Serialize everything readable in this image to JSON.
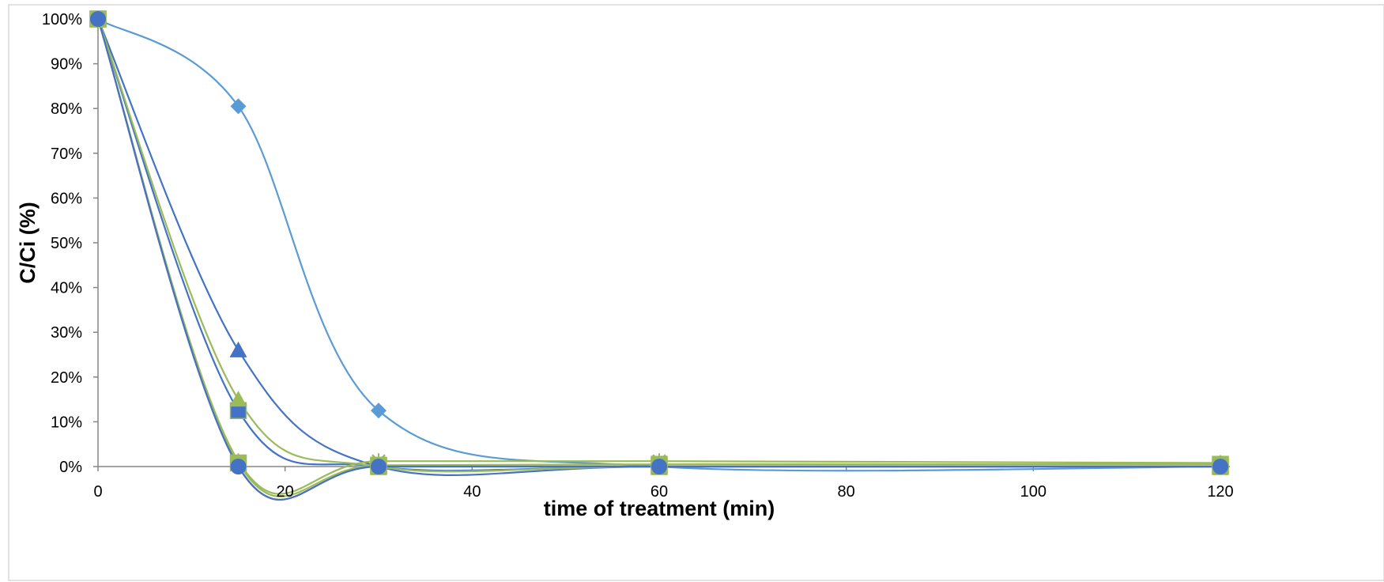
{
  "chart_data": {
    "type": "line",
    "title": "",
    "xlabel": "time of treatment (min)",
    "ylabel": "C/Ci (%)",
    "xlim": [
      0,
      120
    ],
    "ylim": [
      0,
      100
    ],
    "x_ticks": [
      0,
      20,
      40,
      60,
      80,
      100,
      120
    ],
    "y_ticks": [
      0,
      10,
      20,
      30,
      40,
      50,
      60,
      70,
      80,
      90,
      100
    ],
    "y_tick_labels": [
      "0%",
      "10%",
      "20%",
      "30%",
      "40%",
      "50%",
      "60%",
      "70%",
      "80%",
      "90%",
      "100%"
    ],
    "grid": false,
    "legend": "none",
    "smooth": true,
    "x": [
      0,
      15,
      30,
      60,
      120
    ],
    "series": [
      {
        "values": [
          100,
          80.5,
          12.5,
          0,
          0
        ],
        "color": "#5b9bd5",
        "marker": "diamond"
      },
      {
        "values": [
          100,
          26,
          0,
          0,
          0
        ],
        "color": "#4472c4",
        "marker": "triangle"
      },
      {
        "values": [
          100,
          12.5,
          0,
          0,
          0
        ],
        "color": "#4472c4",
        "marker": "square"
      },
      {
        "values": [
          100,
          15,
          0,
          0,
          0
        ],
        "color": "#9bbb59",
        "marker": "triangle"
      },
      {
        "values": [
          100,
          0,
          0,
          0,
          0
        ],
        "color": "#ed7d31",
        "marker": "circle"
      },
      {
        "values": [
          100,
          1.2,
          1.2,
          1.2,
          0.8
        ],
        "color": "#9bbb59",
        "marker": "x"
      },
      {
        "values": [
          100,
          0.8,
          0.3,
          0.5,
          0.5
        ],
        "color": "#9bbb59",
        "marker": "square"
      },
      {
        "values": [
          100,
          0,
          0,
          0,
          0
        ],
        "color": "#4472c4",
        "marker": "circle"
      }
    ]
  }
}
